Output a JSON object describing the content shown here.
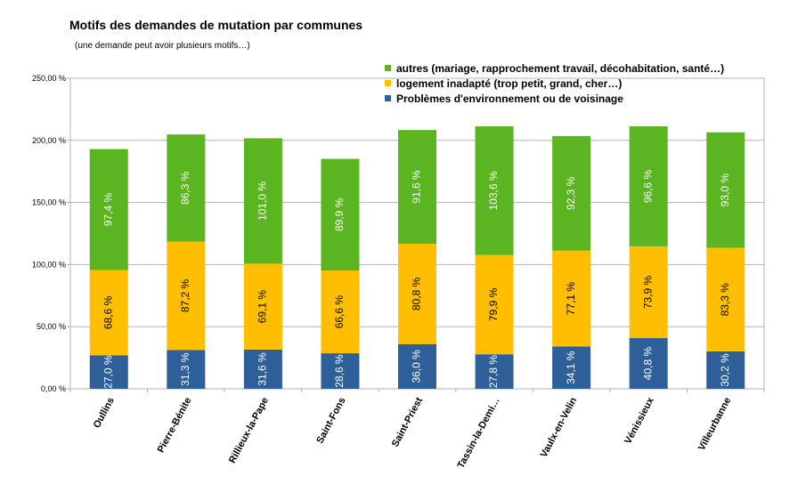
{
  "chart_data": {
    "type": "bar",
    "stacked": true,
    "title": "Motifs des demandes de mutation par communes",
    "subtitle": "(une demande peut avoir plusieurs motifs…)",
    "categories": [
      "Oullins",
      "Pierre-Bénite",
      "Rillieux-la-Pape",
      "Saint-Fons",
      "Saint-Priest",
      "Tassin-la-Demi…",
      "Vaulx-en-Velin",
      "Vénissieux",
      "Villeurbanne"
    ],
    "series": [
      {
        "name": "Problèmes d'environnement ou de voisinage",
        "color": "#2e5f99",
        "label_color": "#ffffff",
        "values": [
          27.0,
          31.3,
          31.6,
          28.6,
          36.0,
          27.8,
          34.1,
          40.8,
          30.2
        ],
        "labels": [
          "27,0 %",
          "31,3 %",
          "31,6 %",
          "28,6 %",
          "36,0 %",
          "27,8 %",
          "34,1 %",
          "40,8 %",
          "30,2 %"
        ]
      },
      {
        "name": "logement inadapté (trop petit, grand, cher…)",
        "color": "#ffbf00",
        "label_color": "#000000",
        "values": [
          68.6,
          87.2,
          69.1,
          66.6,
          80.8,
          79.9,
          77.1,
          73.9,
          83.3
        ],
        "labels": [
          "68,6 %",
          "87,2 %",
          "69,1 %",
          "66,6 %",
          "80,8 %",
          "79,9 %",
          "77,1 %",
          "73,9 %",
          "83,3 %"
        ]
      },
      {
        "name": "autres (mariage, rapprochement travail, décohabitation, santé…)",
        "color": "#5ab520",
        "label_color": "#ffffff",
        "values": [
          97.4,
          86.3,
          101.0,
          89.9,
          91.6,
          103.6,
          92.3,
          96.6,
          93.0
        ],
        "labels": [
          "97,4 %",
          "86,3 %",
          "101,0 %",
          "89,9 %",
          "91,6 %",
          "103,6 %",
          "92,3 %",
          "96,6 %",
          "93,0 %"
        ]
      }
    ],
    "ylim": [
      0,
      250
    ],
    "yticks": [
      0,
      50,
      100,
      150,
      200,
      250
    ],
    "ytick_labels": [
      "0,00 %",
      "50,00 %",
      "100,00 %",
      "150,00 %",
      "200,00 %",
      "250,00 %"
    ],
    "grid": true,
    "legend_position": "top-right"
  }
}
